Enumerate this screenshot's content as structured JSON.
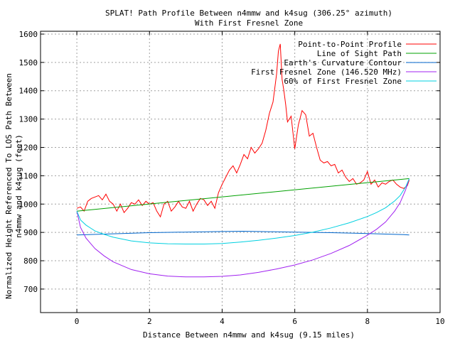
{
  "chart_data": {
    "type": "line",
    "title_line1": "SPLAT! Path Profile Between n4mmw and k4sug (306.25° azimuth)",
    "title_line2": "With First Fresnel Zone",
    "xlabel": "Distance Between n4mmw and k4sug (9.15 miles)",
    "ylabel_line1": "Normalized Height Referenced To LOS Path Between",
    "ylabel_line2": "n4mmw and k4sug (feet)",
    "xlim": [
      -1,
      10
    ],
    "ylim": [
      617,
      1610
    ],
    "x_ticks": [
      0,
      2,
      4,
      6,
      8,
      10
    ],
    "y_ticks": [
      700,
      800,
      900,
      1000,
      1100,
      1200,
      1300,
      1400,
      1500,
      1600
    ],
    "grid": true,
    "legend_position": "top-right",
    "series": [
      {
        "name": "Point-to-Point Profile",
        "color": "#ff0000",
        "x": [
          0.0,
          0.1,
          0.2,
          0.3,
          0.4,
          0.5,
          0.6,
          0.7,
          0.8,
          0.9,
          1.0,
          1.1,
          1.2,
          1.3,
          1.4,
          1.5,
          1.6,
          1.7,
          1.8,
          1.9,
          2.0,
          2.1,
          2.2,
          2.3,
          2.4,
          2.5,
          2.6,
          2.7,
          2.8,
          2.9,
          3.0,
          3.1,
          3.2,
          3.3,
          3.4,
          3.5,
          3.6,
          3.7,
          3.8,
          3.9,
          4.0,
          4.1,
          4.2,
          4.3,
          4.4,
          4.5,
          4.6,
          4.7,
          4.8,
          4.9,
          5.0,
          5.1,
          5.2,
          5.3,
          5.4,
          5.5,
          5.55,
          5.6,
          5.65,
          5.7,
          5.75,
          5.8,
          5.9,
          6.0,
          6.1,
          6.2,
          6.3,
          6.4,
          6.5,
          6.6,
          6.7,
          6.8,
          6.9,
          7.0,
          7.1,
          7.2,
          7.3,
          7.4,
          7.5,
          7.6,
          7.7,
          7.8,
          7.9,
          8.0,
          8.1,
          8.2,
          8.3,
          8.4,
          8.5,
          8.6,
          8.7,
          8.8,
          8.9,
          9.0,
          9.1,
          9.15
        ],
        "y": [
          985,
          990,
          975,
          1010,
          1020,
          1025,
          1030,
          1015,
          1035,
          1010,
          1000,
          975,
          1000,
          970,
          985,
          1005,
          1000,
          1015,
          995,
          1010,
          1000,
          1005,
          975,
          955,
          1000,
          1010,
          975,
          990,
          1010,
          990,
          985,
          1010,
          975,
          1000,
          1020,
          1015,
          995,
          1010,
          985,
          1040,
          1070,
          1095,
          1120,
          1135,
          1110,
          1140,
          1175,
          1160,
          1200,
          1180,
          1195,
          1215,
          1260,
          1320,
          1360,
          1460,
          1540,
          1565,
          1440,
          1400,
          1350,
          1290,
          1310,
          1195,
          1280,
          1330,
          1315,
          1240,
          1250,
          1200,
          1155,
          1145,
          1150,
          1135,
          1140,
          1110,
          1120,
          1095,
          1080,
          1090,
          1070,
          1075,
          1085,
          1115,
          1070,
          1085,
          1060,
          1075,
          1070,
          1080,
          1085,
          1070,
          1060,
          1055,
          1065,
          1085
        ]
      },
      {
        "name": "Line of Sight Path",
        "color": "#00a000",
        "x": [
          0,
          9.15
        ],
        "y": [
          975,
          1090
        ]
      },
      {
        "name": "Earth's Curvature Contour",
        "color": "#0066cc",
        "x": [
          0,
          1,
          2,
          3,
          4,
          4.575,
          5,
          6,
          7,
          8,
          9,
          9.15
        ],
        "y": [
          891,
          895,
          899,
          901,
          903,
          904,
          903,
          901,
          899,
          896,
          892,
          891
        ]
      },
      {
        "name": "First Fresnel Zone (146.520 MHz)",
        "color": "#a020f0",
        "x": [
          0,
          0.1,
          0.25,
          0.5,
          0.75,
          1.0,
          1.5,
          2.0,
          2.5,
          3.0,
          3.5,
          4.0,
          4.5,
          5.0,
          5.5,
          6.0,
          6.5,
          7.0,
          7.5,
          8.0,
          8.25,
          8.5,
          8.75,
          8.9,
          9.05,
          9.15
        ],
        "y": [
          975,
          918,
          880,
          843,
          817,
          796,
          769,
          754,
          746,
          743,
          743,
          745,
          750,
          759,
          771,
          785,
          803,
          826,
          854,
          890,
          911,
          937,
          975,
          1005,
          1050,
          1090
        ]
      },
      {
        "name": "60% of First Fresnel Zone",
        "color": "#00d0e0",
        "x": [
          0,
          0.1,
          0.25,
          0.5,
          0.75,
          1.0,
          1.5,
          2.0,
          2.5,
          3.0,
          3.5,
          4.0,
          4.5,
          5.0,
          5.5,
          6.0,
          6.5,
          7.0,
          7.5,
          8.0,
          8.25,
          8.5,
          8.75,
          8.9,
          9.05,
          9.15
        ],
        "y": [
          975,
          944,
          926,
          905,
          893,
          883,
          870,
          863,
          860,
          859,
          859,
          861,
          866,
          872,
          880,
          889,
          901,
          916,
          934,
          956,
          970,
          987,
          1011,
          1030,
          1060,
          1090
        ]
      }
    ]
  }
}
